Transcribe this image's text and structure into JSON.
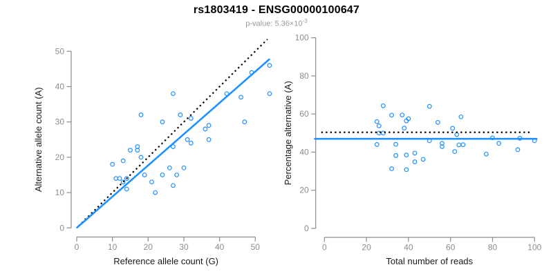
{
  "header": {
    "title": "rs1803419 - ENSG00000100647",
    "pvalue_prefix": "p-value: ",
    "pvalue_mantissa": "5.36",
    "pvalue_times": "×10",
    "pvalue_exponent": "-3"
  },
  "colors": {
    "accent_blue": "#1E90FF",
    "dotted_line": "#000000",
    "axis_line": "#8C8C8C",
    "tick_label": "#8C8C8C",
    "axis_title": "#1A1A1A",
    "title_text": "#000000",
    "subtitle_text": "#999999",
    "background": "#FFFFFF"
  },
  "chart_data": [
    {
      "type": "scatter",
      "panel": "left",
      "xlabel": "Reference allele count (G)",
      "ylabel": "Alternative allele count (A)",
      "xlim": [
        0,
        54
      ],
      "ylim": [
        0,
        53.5
      ],
      "xticks": [
        0,
        10,
        20,
        30,
        40,
        50
      ],
      "yticks": [
        0,
        10,
        20,
        30,
        40,
        50
      ],
      "grid": false,
      "legend": "none",
      "points": [
        [
          10,
          18
        ],
        [
          11,
          14
        ],
        [
          12,
          14
        ],
        [
          13,
          13
        ],
        [
          13,
          19
        ],
        [
          14,
          11
        ],
        [
          14,
          14
        ],
        [
          15,
          22
        ],
        [
          17,
          22
        ],
        [
          17,
          23
        ],
        [
          18,
          20
        ],
        [
          18,
          32
        ],
        [
          19,
          15
        ],
        [
          21,
          13
        ],
        [
          22,
          10
        ],
        [
          24,
          15
        ],
        [
          24,
          30
        ],
        [
          26,
          17
        ],
        [
          27,
          12
        ],
        [
          27,
          23
        ],
        [
          27,
          38
        ],
        [
          28,
          15
        ],
        [
          29,
          32
        ],
        [
          30,
          17
        ],
        [
          31,
          25
        ],
        [
          32,
          24
        ],
        [
          32,
          31
        ],
        [
          36,
          28
        ],
        [
          37,
          25
        ],
        [
          37,
          29
        ],
        [
          42,
          38
        ],
        [
          46,
          37
        ],
        [
          47,
          30
        ],
        [
          49,
          44
        ],
        [
          54,
          38
        ],
        [
          54,
          46
        ]
      ],
      "lines": [
        {
          "name": "identity-line",
          "style": "dotted",
          "x1": 0.5,
          "y1": 0.5,
          "x2": 53.4,
          "y2": 53.4
        },
        {
          "name": "fit-line",
          "style": "solid",
          "x1": 0.1,
          "y1": 0.1,
          "x2": 53.9,
          "y2": 47.7
        }
      ]
    },
    {
      "type": "scatter",
      "panel": "right",
      "xlabel": "Total number of reads",
      "ylabel": "Percentage alternative (A)",
      "xlim": [
        0,
        101
      ],
      "ylim": [
        0,
        100
      ],
      "xticks": [
        0,
        20,
        40,
        60,
        80,
        100
      ],
      "yticks": [
        0,
        20,
        40,
        60,
        80,
        100
      ],
      "grid": false,
      "legend": "none",
      "points": [
        [
          28,
          64.3
        ],
        [
          25,
          56
        ],
        [
          26,
          53.8
        ],
        [
          26,
          50
        ],
        [
          32,
          59.4
        ],
        [
          25,
          44
        ],
        [
          28,
          50
        ],
        [
          37,
          59.5
        ],
        [
          39,
          56.4
        ],
        [
          40,
          57.5
        ],
        [
          38,
          52.6
        ],
        [
          50,
          64
        ],
        [
          34,
          44.1
        ],
        [
          34,
          38.2
        ],
        [
          32,
          31.3
        ],
        [
          39,
          38.5
        ],
        [
          54,
          55.6
        ],
        [
          43,
          39.5
        ],
        [
          39,
          30.8
        ],
        [
          50,
          46
        ],
        [
          65,
          58.5
        ],
        [
          43,
          34.9
        ],
        [
          61,
          52.5
        ],
        [
          47,
          36.2
        ],
        [
          56,
          44.6
        ],
        [
          56,
          42.9
        ],
        [
          63,
          49.2
        ],
        [
          64,
          43.8
        ],
        [
          62,
          40.3
        ],
        [
          66,
          43.9
        ],
        [
          80,
          47.5
        ],
        [
          83,
          44.6
        ],
        [
          77,
          39
        ],
        [
          93,
          47.3
        ],
        [
          92,
          41.3
        ],
        [
          100,
          46
        ]
      ],
      "lines": [
        {
          "name": "expected-line",
          "style": "dotted",
          "x1": -1.5,
          "y1": 50.4,
          "x2": 98,
          "y2": 50.4
        },
        {
          "name": "fit-line",
          "style": "solid",
          "x1": -4.5,
          "y1": 47,
          "x2": 101,
          "y2": 47
        }
      ]
    }
  ]
}
